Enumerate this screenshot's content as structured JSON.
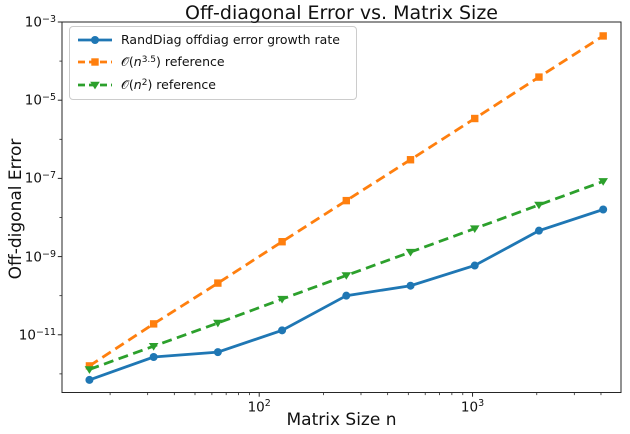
{
  "chart_data": {
    "type": "line",
    "title": "Off-diagonal Error vs. Matrix Size",
    "xlabel": "Matrix Size n",
    "ylabel": "Off-digonal Error",
    "x_scale": "log",
    "y_scale": "log",
    "grid": false,
    "legend_position": "upper left",
    "xlim": [
      11.9,
      4965
    ],
    "ylim": [
      3.34e-13,
      0.001
    ],
    "x": [
      16,
      32,
      64,
      128,
      256,
      512,
      1024,
      2048,
      4096
    ],
    "series": [
      {
        "name": "randdiag-error",
        "color": "#1f77b4",
        "linestyle": "solid",
        "marker": "circle",
        "values": [
          7e-13,
          2.7e-12,
          3.6e-12,
          1.3e-11,
          1e-10,
          1.8e-10,
          5.9e-10,
          4.6e-09,
          1.6e-08
        ],
        "legend_label": {
          "text": "RandDiag offdiag error growth rate"
        }
      },
      {
        "name": "n35-reference",
        "color": "#ff7f0e",
        "linestyle": "dashed",
        "marker": "square",
        "values": [
          1.6e-12,
          1.9e-11,
          2.1e-10,
          2.4e-09,
          2.7e-08,
          3e-07,
          3.4e-06,
          3.9e-05,
          0.00044
        ],
        "legend_label": {
          "pre": "𝒪(",
          "var": "n",
          "sup": "3.5",
          "post": ") reference"
        }
      },
      {
        "name": "n2-reference",
        "color": "#2ca02c",
        "linestyle": "dashed",
        "marker": "triangle-down",
        "values": [
          1.3e-12,
          5.1e-12,
          2e-11,
          8.2e-11,
          3.3e-10,
          1.3e-09,
          5.2e-09,
          2.1e-08,
          8.4e-08
        ],
        "legend_label": {
          "pre": "𝒪(",
          "var": "n",
          "sup": "2",
          "post": ") reference"
        }
      }
    ],
    "xticks": [
      {
        "base": "10",
        "exp": "2",
        "value": 100
      },
      {
        "base": "10",
        "exp": "3",
        "value": 1000
      }
    ],
    "yticks": [
      {
        "base": "10",
        "exp": "−3",
        "value": 0.001
      },
      {
        "base": "10",
        "exp": "−5",
        "value": 1e-05
      },
      {
        "base": "10",
        "exp": "−7",
        "value": 1e-07
      },
      {
        "base": "10",
        "exp": "−9",
        "value": 1e-09
      },
      {
        "base": "10",
        "exp": "−11",
        "value": 1e-11
      }
    ]
  }
}
